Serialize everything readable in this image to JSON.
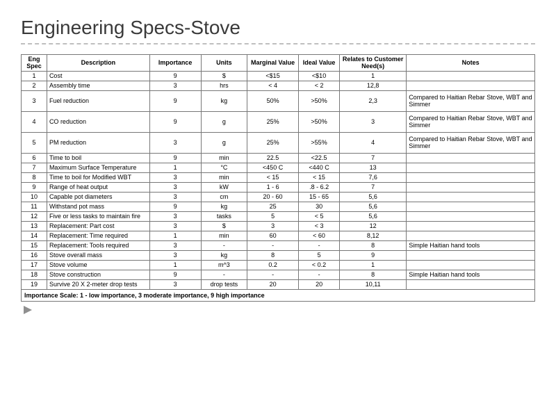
{
  "slide": {
    "title": "Engineering Specs-Stove",
    "footnote": "Importance Scale: 1 - low importance, 3 moderate importance, 9 high importance"
  },
  "table": {
    "columns": [
      "Eng Spec",
      "Description",
      "Importance",
      "Units",
      "Marginal Value",
      "Ideal Value",
      "Relates to Customer Need(s)",
      "Notes"
    ],
    "rows": [
      {
        "tall": false,
        "c": [
          "1",
          "Cost",
          "9",
          "$",
          "<$15",
          "<$10",
          "1",
          ""
        ]
      },
      {
        "tall": false,
        "c": [
          "2",
          "Assembly time",
          "3",
          "hrs",
          "< 4",
          "< 2",
          "12,8",
          ""
        ]
      },
      {
        "tall": true,
        "c": [
          "3",
          "Fuel reduction",
          "9",
          "kg",
          "50%",
          ">50%",
          "2,3",
          "Compared to Haitian Rebar Stove, WBT and Simmer"
        ]
      },
      {
        "tall": true,
        "c": [
          "4",
          "CO reduction",
          "9",
          "g",
          "25%",
          ">50%",
          "3",
          "Compared to Haitian Rebar Stove, WBT and Simmer"
        ]
      },
      {
        "tall": true,
        "c": [
          "5",
          "PM reduction",
          "3",
          "g",
          "25%",
          ">55%",
          "4",
          "Compared to Haitian Rebar Stove, WBT and Simmer"
        ]
      },
      {
        "tall": false,
        "c": [
          "6",
          "Time to boil",
          "9",
          "min",
          "22.5",
          "<22.5",
          "7",
          ""
        ]
      },
      {
        "tall": false,
        "c": [
          "7",
          "Maximum Surface Temperature",
          "1",
          "°C",
          "<450 C",
          "<440 C",
          "13",
          ""
        ]
      },
      {
        "tall": false,
        "c": [
          "8",
          "Time to boil for Modified WBT",
          "3",
          "min",
          "< 15",
          "< 15",
          "7,6",
          ""
        ]
      },
      {
        "tall": false,
        "c": [
          "9",
          "Range of heat output",
          "3",
          "kW",
          "1 - 6",
          ".8 - 6.2",
          "7",
          ""
        ]
      },
      {
        "tall": false,
        "c": [
          "10",
          "Capable pot diameters",
          "3",
          "cm",
          "20 - 60",
          "15 - 65",
          "5,6",
          ""
        ]
      },
      {
        "tall": false,
        "c": [
          "11",
          "Withstand pot mass",
          "9",
          "kg",
          "25",
          "30",
          "5,6",
          ""
        ]
      },
      {
        "tall": false,
        "c": [
          "12",
          "Five or less tasks to maintain fire",
          "3",
          "tasks",
          "5",
          "< 5",
          "5,6",
          ""
        ]
      },
      {
        "tall": false,
        "c": [
          "13",
          "Replacement: Part cost",
          "3",
          "$",
          "3",
          "< 3",
          "12",
          ""
        ]
      },
      {
        "tall": false,
        "c": [
          "14",
          "Replacement: Time required",
          "1",
          "min",
          "60",
          "< 60",
          "8,12",
          ""
        ]
      },
      {
        "tall": false,
        "c": [
          "15",
          "Replacement: Tools required",
          "3",
          "-",
          "-",
          "-",
          "8",
          "Simple Haitian hand tools"
        ]
      },
      {
        "tall": false,
        "c": [
          "16",
          "Stove overall mass",
          "3",
          "kg",
          "8",
          "5",
          "9",
          ""
        ]
      },
      {
        "tall": false,
        "c": [
          "17",
          "Stove volume",
          "1",
          "m^3",
          "0.2",
          "< 0.2",
          "1",
          ""
        ]
      },
      {
        "tall": false,
        "c": [
          "18",
          "Stove construction",
          "9",
          "-",
          "-",
          "-",
          "8",
          "Simple Haitian hand tools"
        ]
      },
      {
        "tall": false,
        "c": [
          "19",
          "Survive 20 X 2-meter drop tests",
          "3",
          "drop tests",
          "20",
          "20",
          "10,11",
          ""
        ]
      }
    ]
  },
  "style": {
    "title_color": "#3a3a3a",
    "title_fontsize": 28,
    "underline_color": "#bfbfbf",
    "table_fontsize": 9,
    "border_color": "#777777",
    "text_color": "#000000",
    "bullet_color": "#8f8f8f"
  }
}
